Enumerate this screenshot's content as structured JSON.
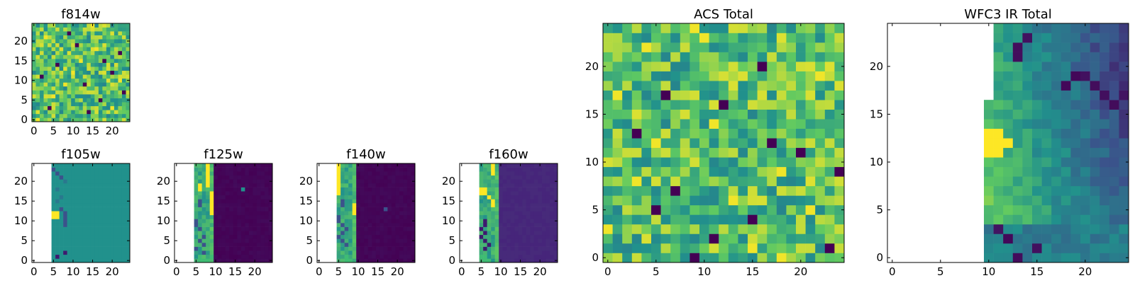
{
  "chart_data": [
    {
      "type": "heatmap",
      "title": "f814w",
      "shape": [
        25,
        25
      ],
      "coverage": "full",
      "pattern": "noise",
      "dark_cells": [
        [
          12,
          20
        ],
        [
          9,
          13
        ],
        [
          14,
          6
        ],
        [
          17,
          22
        ],
        [
          5,
          17
        ],
        [
          22,
          9
        ],
        [
          3,
          4
        ],
        [
          19,
          11
        ],
        [
          7,
          23
        ],
        [
          15,
          18
        ],
        [
          11,
          2
        ],
        [
          2,
          14
        ]
      ],
      "bright_cells": [
        [
          6,
          5
        ],
        [
          12,
          10
        ],
        [
          18,
          16
        ],
        [
          21,
          3
        ],
        [
          3,
          20
        ],
        [
          9,
          8
        ],
        [
          15,
          12
        ],
        [
          0,
          1
        ],
        [
          24,
          15
        ],
        [
          10,
          22
        ]
      ],
      "xticks": [
        0,
        5,
        10,
        15,
        20
      ],
      "yticks": [
        0,
        5,
        10,
        15,
        20
      ],
      "xlim": [
        -0.5,
        24.5
      ],
      "ylim": [
        -0.5,
        24.5
      ]
    },
    {
      "type": "heatmap",
      "title": "f105w",
      "shape": [
        25,
        25
      ],
      "coverage": "partial",
      "data_columns": [
        5,
        24
      ],
      "pattern": "edge",
      "background": "teal",
      "edge_cells": [
        [
          11,
          5,
          "yellow"
        ],
        [
          11,
          6,
          "yellow"
        ],
        [
          12,
          5,
          "yellow"
        ],
        [
          12,
          6,
          "yellow"
        ],
        [
          13,
          7,
          "navy"
        ],
        [
          9,
          8,
          "navy"
        ],
        [
          10,
          8,
          "navy"
        ],
        [
          11,
          8,
          "navy"
        ],
        [
          12,
          8,
          "navy"
        ],
        [
          1,
          6,
          "dark"
        ],
        [
          2,
          8,
          "dark"
        ],
        [
          22,
          4,
          "navy"
        ],
        [
          23,
          4,
          "navy"
        ],
        [
          23,
          5,
          "navy"
        ],
        [
          22,
          6,
          "navy"
        ],
        [
          21,
          7,
          "navy"
        ],
        [
          15,
          6,
          "teal-dark"
        ],
        [
          16,
          7,
          "teal-dark"
        ],
        [
          18,
          6,
          "teal-dark"
        ],
        [
          20,
          8,
          "teal-dark"
        ]
      ],
      "xticks": [
        0,
        5,
        10,
        15,
        20
      ],
      "yticks": [
        0,
        5,
        10,
        15,
        20
      ],
      "xlim": [
        -0.5,
        24.5
      ],
      "ylim": [
        -0.5,
        24.5
      ]
    },
    {
      "type": "heatmap",
      "title": "f125w",
      "shape": [
        25,
        25
      ],
      "coverage": "partial",
      "data_columns": [
        5,
        24
      ],
      "pattern": "edge",
      "background": "dark-purple",
      "strip_end": 9,
      "strip_cells": [
        [
          19,
          8,
          "yellow"
        ],
        [
          20,
          8,
          "yellow"
        ],
        [
          21,
          8,
          "yellow"
        ],
        [
          22,
          8,
          "yellow"
        ],
        [
          23,
          8,
          "yellow"
        ],
        [
          24,
          8,
          "yellow"
        ],
        [
          12,
          9,
          "yellow"
        ],
        [
          13,
          9,
          "yellow"
        ],
        [
          14,
          9,
          "yellow"
        ],
        [
          15,
          9,
          "yellow"
        ],
        [
          16,
          9,
          "yellow"
        ],
        [
          17,
          9,
          "yellow"
        ],
        [
          18,
          6,
          "yellow"
        ],
        [
          19,
          6,
          "yellow"
        ],
        [
          14,
          6,
          "navy"
        ],
        [
          15,
          6,
          "navy"
        ],
        [
          10,
          5,
          "navy"
        ],
        [
          9,
          5,
          "navy"
        ],
        [
          8,
          6,
          "navy"
        ],
        [
          6,
          7,
          "navy"
        ],
        [
          5,
          6,
          "navy"
        ],
        [
          4,
          7,
          "navy"
        ],
        [
          3,
          5,
          "navy"
        ],
        [
          2,
          7,
          "navy"
        ],
        [
          0,
          6,
          "green"
        ],
        [
          0,
          7,
          "green"
        ],
        [
          1,
          6,
          "green"
        ],
        [
          0,
          8,
          "green"
        ],
        [
          1,
          9,
          "green"
        ]
      ],
      "extra_cells": [
        [
          18,
          17,
          "teal"
        ]
      ],
      "xticks": [
        0,
        5,
        10,
        15,
        20
      ],
      "yticks": [
        0,
        5,
        10,
        15,
        20
      ],
      "xlim": [
        -0.5,
        24.5
      ],
      "ylim": [
        -0.5,
        24.5
      ]
    },
    {
      "type": "heatmap",
      "title": "f140w",
      "shape": [
        25,
        25
      ],
      "coverage": "partial",
      "data_columns": [
        5,
        24
      ],
      "pattern": "edge",
      "background": "dark-purple",
      "strip_end": 9,
      "strip_cells": [
        [
          17,
          5,
          "yellow"
        ],
        [
          18,
          5,
          "yellow"
        ],
        [
          19,
          5,
          "yellow"
        ],
        [
          20,
          5,
          "yellow"
        ],
        [
          21,
          5,
          "yellow"
        ],
        [
          22,
          5,
          "yellow"
        ],
        [
          23,
          5,
          "yellow"
        ],
        [
          24,
          5,
          "yellow"
        ],
        [
          13,
          9,
          "yellow"
        ],
        [
          14,
          9,
          "yellow"
        ],
        [
          12,
          9,
          "yellow"
        ],
        [
          15,
          6,
          "navy"
        ],
        [
          14,
          6,
          "navy"
        ],
        [
          11,
          5,
          "navy"
        ],
        [
          10,
          5,
          "navy"
        ],
        [
          9,
          6,
          "navy"
        ],
        [
          8,
          7,
          "navy"
        ],
        [
          7,
          6,
          "navy"
        ],
        [
          6,
          5,
          "navy"
        ],
        [
          5,
          6,
          "navy"
        ],
        [
          4,
          7,
          "navy"
        ],
        [
          1,
          7,
          "green"
        ],
        [
          0,
          7,
          "green"
        ],
        [
          0,
          8,
          "green"
        ]
      ],
      "extra_cells": [
        [
          13,
          17,
          "navy"
        ]
      ],
      "xticks": [
        0,
        5,
        10,
        15,
        20
      ],
      "yticks": [
        0,
        5,
        10,
        15,
        20
      ],
      "xlim": [
        -0.5,
        24.5
      ],
      "ylim": [
        -0.5,
        24.5
      ]
    },
    {
      "type": "heatmap",
      "title": "f160w",
      "shape": [
        25,
        25
      ],
      "coverage": "partial",
      "data_columns": [
        5,
        24
      ],
      "pattern": "edge",
      "background": "purple",
      "strip_end": 9,
      "strip_cells": [
        [
          17,
          5,
          "yellow"
        ],
        [
          18,
          5,
          "yellow"
        ],
        [
          17,
          6,
          "yellow"
        ],
        [
          18,
          6,
          "yellow"
        ],
        [
          16,
          7,
          "yellow"
        ],
        [
          22,
          8,
          "yellow"
        ],
        [
          23,
          8,
          "yellow"
        ],
        [
          24,
          8,
          "yellow"
        ],
        [
          15,
          8,
          "yellow"
        ],
        [
          14,
          8,
          "yellow"
        ],
        [
          10,
          6,
          "dark"
        ],
        [
          9,
          6,
          "dark"
        ],
        [
          8,
          5,
          "dark"
        ],
        [
          7,
          6,
          "dark"
        ],
        [
          6,
          5,
          "dark"
        ],
        [
          5,
          6,
          "dark"
        ],
        [
          4,
          7,
          "dark"
        ],
        [
          3,
          6,
          "dark"
        ],
        [
          1,
          5,
          "green"
        ],
        [
          1,
          6,
          "green"
        ],
        [
          0,
          6,
          "green"
        ],
        [
          0,
          7,
          "green"
        ]
      ],
      "extra_cells": [],
      "xticks": [
        0,
        5,
        10,
        15,
        20
      ],
      "yticks": [
        0,
        5,
        10,
        15,
        20
      ],
      "xlim": [
        -0.5,
        24.5
      ],
      "ylim": [
        -0.5,
        24.5
      ]
    },
    {
      "type": "heatmap",
      "title": "ACS Total",
      "shape": [
        25,
        25
      ],
      "coverage": "full",
      "pattern": "noise",
      "dark_cells": [
        [
          20,
          16
        ],
        [
          11,
          20
        ],
        [
          7,
          7
        ],
        [
          5,
          5
        ],
        [
          2,
          11
        ],
        [
          1,
          23
        ],
        [
          4,
          15
        ],
        [
          13,
          3
        ],
        [
          16,
          12
        ],
        [
          12,
          17
        ],
        [
          0,
          9
        ],
        [
          9,
          24
        ],
        [
          17,
          6
        ]
      ],
      "bright_cells": [
        [
          24,
          9
        ],
        [
          23,
          10
        ],
        [
          22,
          4
        ],
        [
          17,
          1
        ],
        [
          14,
          11
        ],
        [
          9,
          18
        ],
        [
          6,
          13
        ],
        [
          3,
          0
        ],
        [
          1,
          15
        ],
        [
          0,
          18
        ],
        [
          19,
          22
        ],
        [
          12,
          5
        ],
        [
          8,
          3
        ],
        [
          5,
          21
        ]
      ],
      "xticks": [
        0,
        5,
        10,
        15,
        20
      ],
      "yticks": [
        0,
        5,
        10,
        15,
        20
      ],
      "xlim": [
        -0.5,
        24.5
      ],
      "ylim": [
        -0.5,
        24.5
      ]
    },
    {
      "type": "heatmap",
      "title": "WFC3 IR Total",
      "shape": [
        25,
        25
      ],
      "coverage": "partial",
      "data_columns": [
        10,
        24
      ],
      "data_rows_by_column": {
        "10": [
          0,
          16
        ],
        "11": [
          0,
          24
        ]
      },
      "pattern": "gradient",
      "bright_cells": [
        [
          12,
          10
        ],
        [
          13,
          10
        ],
        [
          12,
          11
        ],
        [
          13,
          11
        ],
        [
          11,
          10
        ],
        [
          11,
          11
        ],
        [
          12,
          12
        ]
      ],
      "dark_cells": [
        [
          22,
          13
        ],
        [
          21,
          13
        ],
        [
          23,
          14
        ],
        [
          19,
          19
        ],
        [
          19,
          20
        ],
        [
          18,
          21
        ],
        [
          18,
          18
        ],
        [
          17,
          22
        ],
        [
          16,
          23
        ],
        [
          3,
          11
        ],
        [
          2,
          12
        ],
        [
          1,
          15
        ],
        [
          0,
          13
        ],
        [
          17,
          24
        ]
      ],
      "xticks": [
        0,
        5,
        10,
        15,
        20
      ],
      "yticks": [
        0,
        5,
        10,
        15,
        20
      ],
      "xlim": [
        -0.5,
        24.5
      ],
      "ylim": [
        -0.5,
        24.5
      ]
    }
  ],
  "colormap": [
    "#440154",
    "#3b528b",
    "#21918c",
    "#5ec962",
    "#fde725"
  ]
}
